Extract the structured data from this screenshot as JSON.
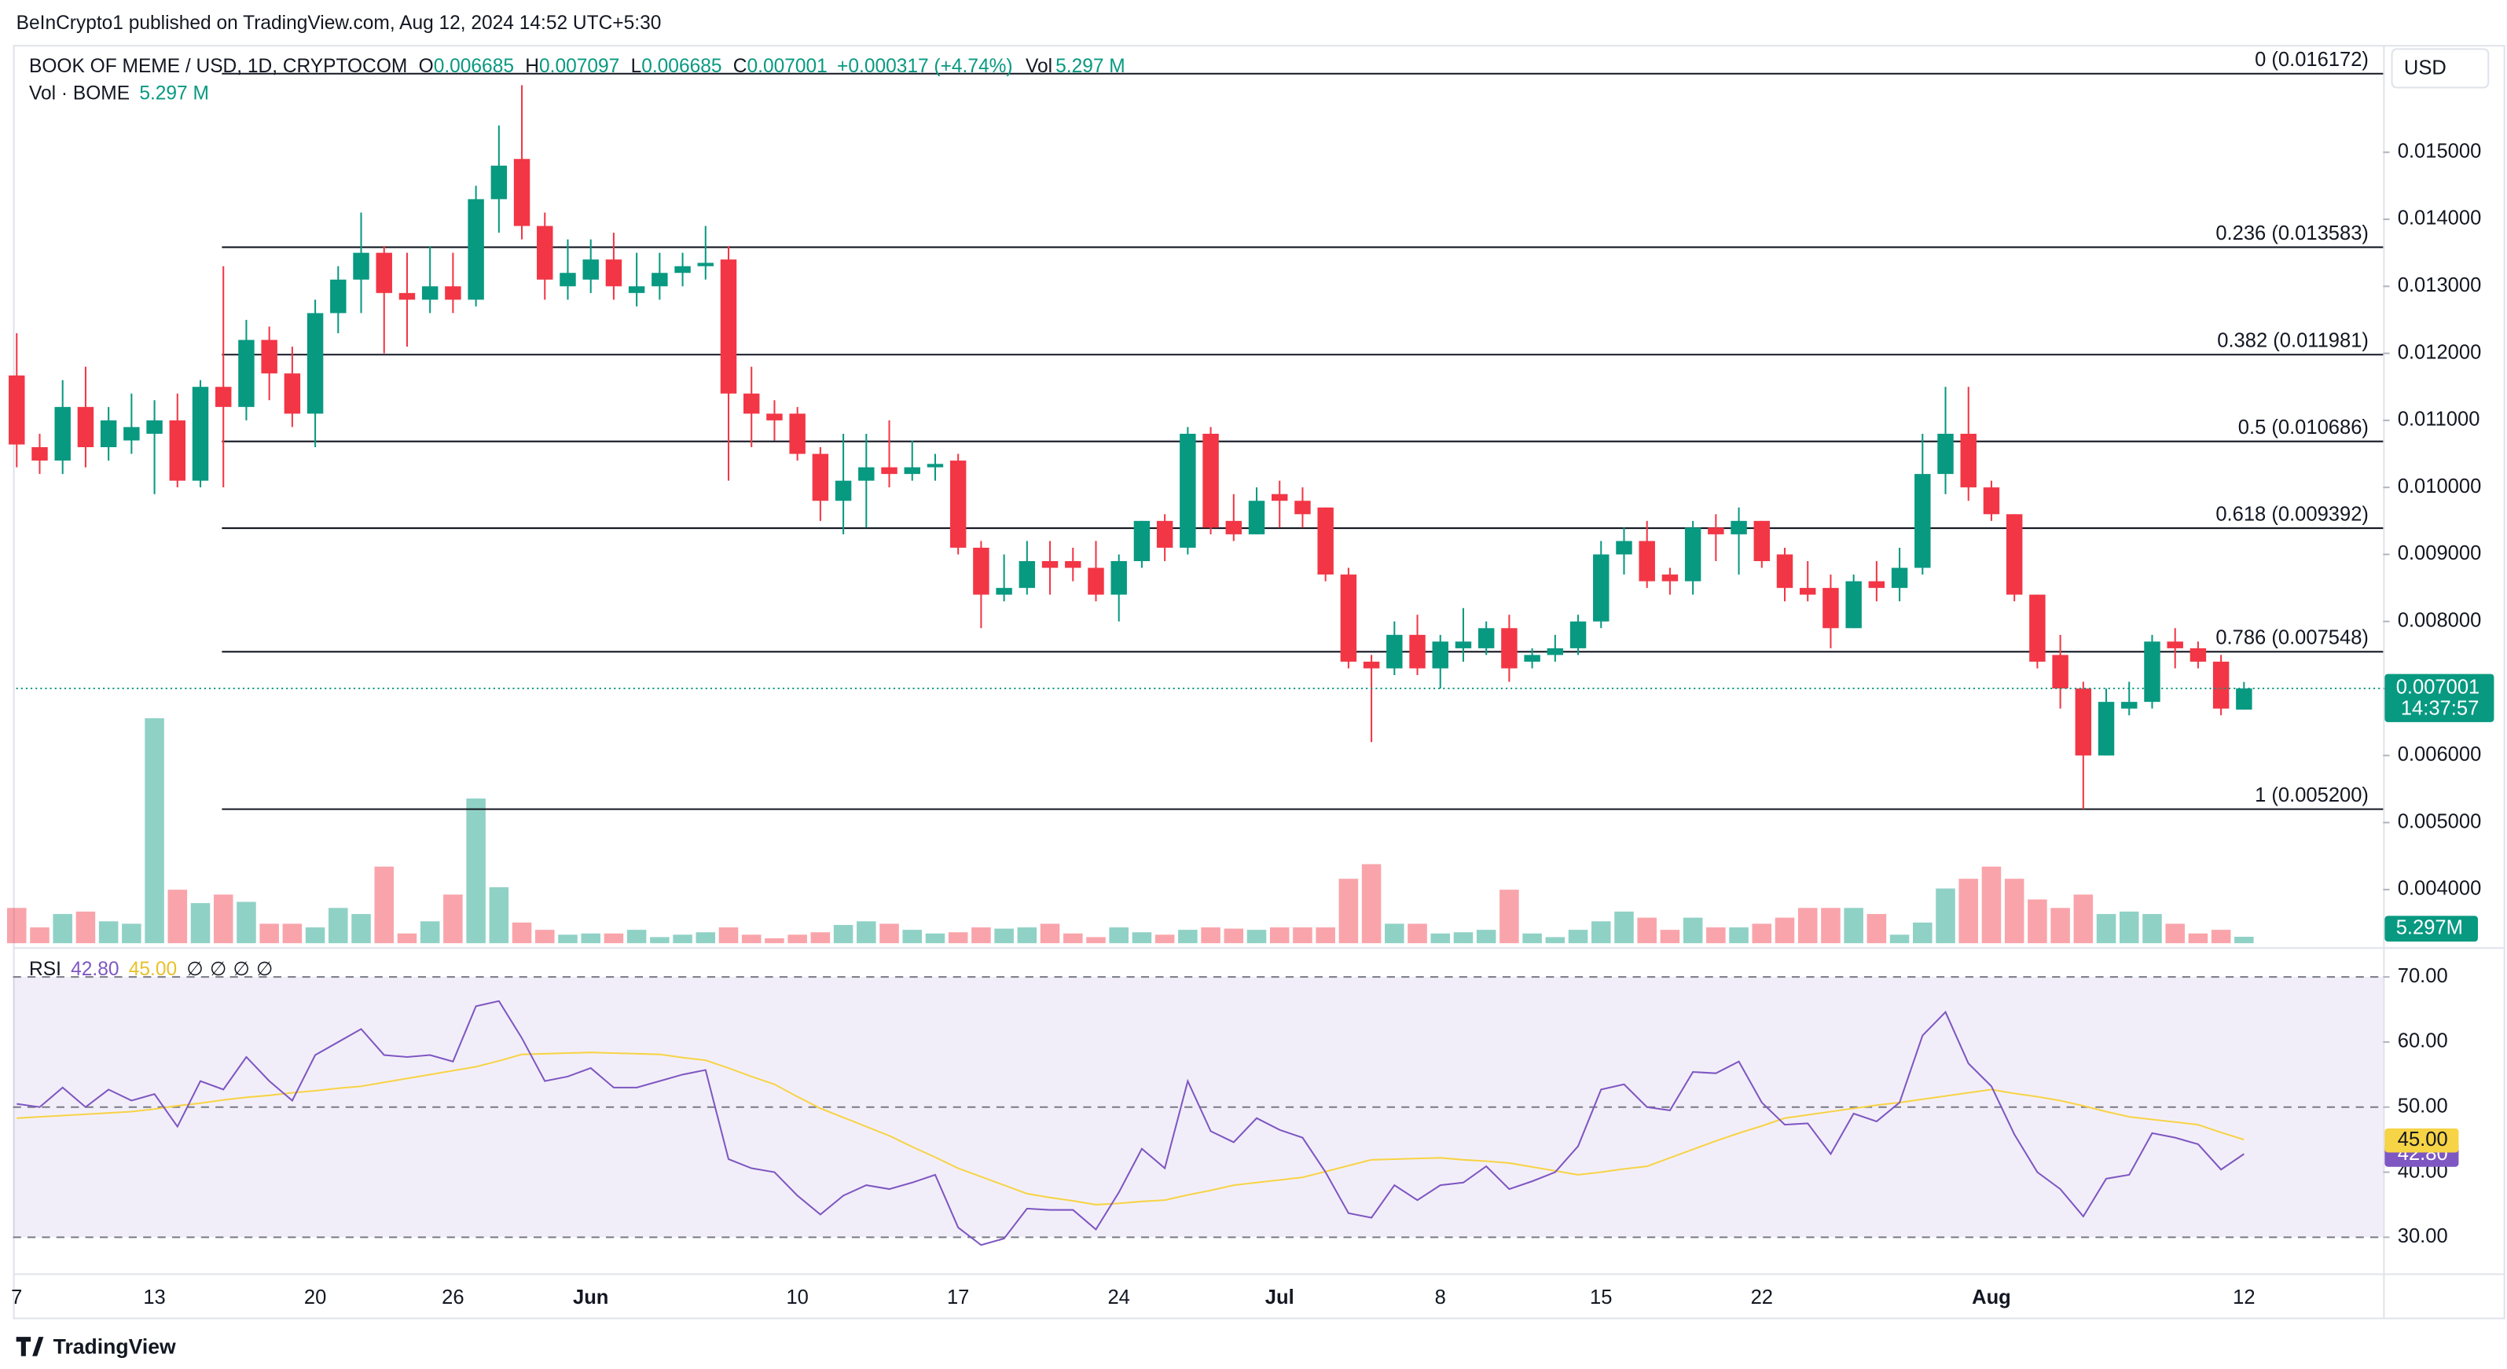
{
  "header": {
    "published": "BeInCrypto1 published on TradingView.com, Aug 12, 2024 14:52 UTC+5:30",
    "brand": "TradingView"
  },
  "chart_data": [
    {
      "type": "candlestick",
      "title": "BOOK OF MEME / USD, 1D, CRYPTOCOM",
      "currency": "USD",
      "ohlc_labels": [
        "O",
        "H",
        "L",
        "C"
      ],
      "change_label": "+0.000317 (+4.74%)",
      "last_price_time": "14:37:57",
      "up_color": "#089981",
      "down_color": "#f23645",
      "categories": [
        "7",
        null,
        null,
        null,
        null,
        null,
        "13",
        null,
        null,
        null,
        null,
        null,
        null,
        "20",
        null,
        null,
        null,
        null,
        null,
        "26",
        null,
        null,
        null,
        null,
        null,
        "Jun",
        null,
        null,
        null,
        null,
        null,
        null,
        null,
        null,
        "10",
        null,
        null,
        null,
        null,
        null,
        null,
        "17",
        null,
        null,
        null,
        null,
        null,
        null,
        "24",
        null,
        null,
        null,
        null,
        null,
        null,
        "Jul",
        null,
        null,
        null,
        null,
        null,
        null,
        "8",
        null,
        null,
        null,
        null,
        null,
        null,
        "15",
        null,
        null,
        null,
        null,
        null,
        null,
        "22",
        null,
        null,
        null,
        null,
        null,
        null,
        null,
        null,
        null,
        "Aug",
        null,
        null,
        null,
        null,
        null,
        null,
        null,
        null,
        null,
        null,
        "12"
      ],
      "open": [
        0.01167,
        0.0106,
        0.0104,
        0.0112,
        0.0106,
        0.0107,
        0.0108,
        0.011,
        0.0101,
        0.0115,
        0.0112,
        0.0122,
        0.0117,
        0.0111,
        0.0126,
        0.0131,
        0.0135,
        0.0129,
        0.0128,
        0.013,
        0.0128,
        0.0143,
        0.0149,
        0.0139,
        0.013,
        0.0131,
        0.0134,
        0.0129,
        0.013,
        0.0132,
        0.0133,
        0.0134,
        0.0114,
        0.0111,
        0.0111,
        0.0105,
        0.0098,
        0.0101,
        0.0103,
        0.0102,
        0.0103,
        0.0104,
        0.0091,
        0.0084,
        0.0085,
        0.0089,
        0.0089,
        0.0088,
        0.0084,
        0.0089,
        0.0095,
        0.0091,
        0.0108,
        0.0095,
        0.0093,
        0.0099,
        0.0098,
        0.0097,
        0.0087,
        0.0074,
        0.0073,
        0.0078,
        0.0073,
        0.0076,
        0.0076,
        0.0079,
        0.0074,
        0.0075,
        0.0076,
        0.008,
        0.009,
        0.0092,
        0.0087,
        0.0086,
        0.0094,
        0.0093,
        0.0095,
        0.009,
        0.0085,
        0.0085,
        0.0079,
        0.0086,
        0.0085,
        0.0088,
        0.0102,
        0.0108,
        0.01,
        0.0096,
        0.0084,
        0.0075,
        0.007,
        0.006,
        0.0067,
        0.0068,
        0.0077,
        0.0076,
        0.0074,
        0.006685
      ],
      "high": [
        0.0123,
        0.0108,
        0.0116,
        0.0118,
        0.0112,
        0.0114,
        0.0113,
        0.0114,
        0.0116,
        0.0133,
        0.0125,
        0.0124,
        0.0121,
        0.0128,
        0.0133,
        0.0141,
        0.0136,
        0.0135,
        0.0136,
        0.0135,
        0.0145,
        0.0154,
        0.016,
        0.0141,
        0.0137,
        0.0137,
        0.0138,
        0.0135,
        0.0135,
        0.0135,
        0.0139,
        0.0136,
        0.0118,
        0.0113,
        0.0112,
        0.0106,
        0.0108,
        0.0108,
        0.011,
        0.0107,
        0.0105,
        0.0105,
        0.0092,
        0.009,
        0.0092,
        0.0092,
        0.0091,
        0.0092,
        0.009,
        0.0095,
        0.0096,
        0.0109,
        0.0109,
        0.0099,
        0.01,
        0.0101,
        0.01,
        0.0097,
        0.0088,
        0.0075,
        0.008,
        0.0081,
        0.0078,
        0.0082,
        0.008,
        0.0081,
        0.0076,
        0.0078,
        0.0081,
        0.0092,
        0.0094,
        0.0095,
        0.0088,
        0.0095,
        0.0096,
        0.0097,
        0.0095,
        0.0091,
        0.0089,
        0.0087,
        0.0087,
        0.0089,
        0.0091,
        0.0108,
        0.0115,
        0.0115,
        0.0101,
        0.0096,
        0.0084,
        0.0078,
        0.0071,
        0.007,
        0.0071,
        0.0078,
        0.0079,
        0.0077,
        0.0075,
        0.007097
      ],
      "low": [
        0.0103,
        0.0102,
        0.0102,
        0.0103,
        0.0104,
        0.0105,
        0.0099,
        0.01,
        0.01,
        0.01,
        0.011,
        0.0113,
        0.0109,
        0.0106,
        0.0123,
        0.0126,
        0.012,
        0.0121,
        0.0126,
        0.0126,
        0.0127,
        0.0138,
        0.0137,
        0.0128,
        0.0128,
        0.0129,
        0.0128,
        0.0127,
        0.0128,
        0.013,
        0.0131,
        0.0101,
        0.0106,
        0.0107,
        0.0104,
        0.0095,
        0.0093,
        0.0094,
        0.01,
        0.0101,
        0.0101,
        0.009,
        0.0079,
        0.0083,
        0.0084,
        0.0084,
        0.0086,
        0.0083,
        0.008,
        0.0088,
        0.0089,
        0.009,
        0.0093,
        0.0092,
        0.0093,
        0.0094,
        0.0094,
        0.0086,
        0.0073,
        0.0062,
        0.0072,
        0.0072,
        0.007,
        0.0074,
        0.0075,
        0.0071,
        0.0073,
        0.0074,
        0.0075,
        0.0079,
        0.0087,
        0.0085,
        0.0084,
        0.0084,
        0.0089,
        0.0087,
        0.0088,
        0.0083,
        0.0083,
        0.0076,
        0.0079,
        0.0083,
        0.0083,
        0.0087,
        0.0099,
        0.0098,
        0.0095,
        0.0083,
        0.0073,
        0.0067,
        0.0052,
        0.006,
        0.0066,
        0.0067,
        0.0073,
        0.0073,
        0.0066,
        0.006685
      ],
      "close": [
        0.01064,
        0.0104,
        0.0112,
        0.0106,
        0.011,
        0.0109,
        0.011,
        0.0101,
        0.0115,
        0.0112,
        0.0122,
        0.0117,
        0.0111,
        0.0126,
        0.0131,
        0.0135,
        0.0129,
        0.0128,
        0.013,
        0.0128,
        0.0143,
        0.0148,
        0.0139,
        0.0131,
        0.0132,
        0.0134,
        0.013,
        0.013,
        0.0132,
        0.0133,
        0.01335,
        0.0114,
        0.0111,
        0.011,
        0.0105,
        0.0098,
        0.0101,
        0.0103,
        0.0102,
        0.0103,
        0.01035,
        0.0091,
        0.0084,
        0.0085,
        0.0089,
        0.0088,
        0.0088,
        0.0084,
        0.0089,
        0.0095,
        0.0091,
        0.0108,
        0.0094,
        0.0093,
        0.0098,
        0.0098,
        0.0096,
        0.0087,
        0.0074,
        0.0073,
        0.0078,
        0.0073,
        0.0077,
        0.0077,
        0.0079,
        0.0073,
        0.0075,
        0.0076,
        0.008,
        0.009,
        0.0092,
        0.0086,
        0.0086,
        0.0094,
        0.0093,
        0.0095,
        0.0089,
        0.0085,
        0.0084,
        0.0079,
        0.0086,
        0.0085,
        0.0088,
        0.0102,
        0.0108,
        0.01,
        0.0096,
        0.0084,
        0.0074,
        0.007,
        0.006,
        0.0068,
        0.0068,
        0.0077,
        0.0076,
        0.0074,
        0.0067,
        0.007001
      ],
      "volume": {
        "name": "Vol · BOME",
        "label": "Vol",
        "value_label": "5.297 M",
        "axis_label": "5.297M",
        "values": [
          29,
          13,
          24,
          26,
          18,
          16,
          185,
          44,
          33,
          40,
          34,
          16,
          16,
          13,
          29,
          24,
          63,
          8,
          18,
          40,
          119,
          46,
          17,
          11,
          7,
          8,
          8,
          11,
          5,
          7,
          9,
          13,
          7,
          4,
          7,
          9,
          15,
          18,
          16,
          11,
          8,
          9,
          13,
          12,
          13,
          16,
          8,
          5,
          13,
          9,
          7,
          11,
          13,
          12,
          11,
          13,
          13,
          13,
          53,
          65,
          16,
          16,
          8,
          9,
          11,
          44,
          8,
          5,
          11,
          18,
          26,
          21,
          11,
          21,
          13,
          13,
          16,
          21,
          29,
          29,
          29,
          24,
          7,
          17,
          45,
          53,
          63,
          53,
          36,
          29,
          40,
          24,
          26,
          24,
          16,
          8,
          11,
          5.297
        ]
      },
      "ylim": [
        0.0032,
        0.0166
      ],
      "yticks": [
        {
          "value": 0.004,
          "label": "0.004000"
        },
        {
          "value": 0.005,
          "label": "0.005000"
        },
        {
          "value": 0.006,
          "label": "0.006000"
        },
        {
          "value": 0.007,
          "label": "0.007000"
        },
        {
          "value": 0.008,
          "label": "0.008000"
        },
        {
          "value": 0.009,
          "label": "0.009000"
        },
        {
          "value": 0.01,
          "label": "0.010000"
        },
        {
          "value": 0.011,
          "label": "0.011000"
        },
        {
          "value": 0.012,
          "label": "0.012000"
        },
        {
          "value": 0.013,
          "label": "0.013000"
        },
        {
          "value": 0.014,
          "label": "0.014000"
        },
        {
          "value": 0.015,
          "label": "0.015000"
        }
      ],
      "fib_levels": [
        {
          "value": 0.016172,
          "label": "0 (0.016172)"
        },
        {
          "value": 0.013583,
          "label": "0.236 (0.013583)"
        },
        {
          "value": 0.011981,
          "label": "0.382 (0.011981)"
        },
        {
          "value": 0.010686,
          "label": "0.5 (0.010686)"
        },
        {
          "value": 0.009392,
          "label": "0.618 (0.009392)"
        },
        {
          "value": 0.007548,
          "label": "0.786 (0.007548)"
        },
        {
          "value": 0.0052,
          "label": "1 (0.005200)"
        }
      ]
    },
    {
      "type": "line",
      "title": "RSI",
      "legend_icons": [
        "∅",
        "∅",
        "∅",
        "∅"
      ],
      "series": [
        {
          "color": "#7e57c2",
          "value_label": "42.80",
          "values": [
            50.5,
            50,
            53,
            50,
            52.7,
            51,
            52,
            47,
            54,
            52.7,
            57.7,
            54,
            51,
            58,
            60,
            62,
            58,
            57.7,
            58,
            57,
            65.5,
            66.3,
            60.6,
            54,
            54.7,
            56,
            53,
            53,
            54,
            55,
            55.7,
            42,
            40.6,
            40,
            36.4,
            33.5,
            36.4,
            38,
            37.4,
            38.4,
            39.6,
            31.5,
            28.8,
            29.8,
            34.4,
            34.2,
            34.2,
            31.2,
            36.9,
            43.6,
            40.6,
            54,
            46.3,
            44.6,
            48.3,
            46.5,
            45.3,
            40,
            33.7,
            33,
            38,
            35.7,
            38,
            38.4,
            40.9,
            37.4,
            38.6,
            40,
            44,
            52.7,
            53.5,
            50,
            49.5,
            55.4,
            55.2,
            57,
            50.7,
            47.3,
            47.5,
            42.8,
            49,
            47.8,
            50.7,
            61,
            64.6,
            56.7,
            53.2,
            45.8,
            40,
            37.4,
            33.2,
            39,
            39.6,
            46,
            45.3,
            44.3,
            40.4,
            42.8
          ]
        },
        {
          "color": "#f7d346",
          "value_label": "45.00",
          "values": [
            48.3,
            48.5,
            48.7,
            48.9,
            49.1,
            49.3,
            49.7,
            50.2,
            50.6,
            51.1,
            51.5,
            51.8,
            52.2,
            52.5,
            52.9,
            53.2,
            53.8,
            54.4,
            55.0,
            55.6,
            56.2,
            57.1,
            58.1,
            58.2,
            58.3,
            58.4,
            58.3,
            58.2,
            58.1,
            57.6,
            57.2,
            56.0,
            54.7,
            53.5,
            51.6,
            49.8,
            48.4,
            47.0,
            45.6,
            43.9,
            42.3,
            40.6,
            39.3,
            38.0,
            36.7,
            36.1,
            35.6,
            35.0,
            35.2,
            35.5,
            35.7,
            36.5,
            37.2,
            38.0,
            38.4,
            38.8,
            39.2,
            40.1,
            41.0,
            41.9,
            42.0,
            42.1,
            42.2,
            41.9,
            41.7,
            41.4,
            40.8,
            40.2,
            39.6,
            40.0,
            40.5,
            40.9,
            42.2,
            43.5,
            44.8,
            46.0,
            47.1,
            48.3,
            48.8,
            49.3,
            49.8,
            50.3,
            50.7,
            51.2,
            51.7,
            52.2,
            52.7,
            52.1,
            51.6,
            51.0,
            50.2,
            49.3,
            48.5,
            48.1,
            47.7,
            47.3,
            46.1,
            45.0
          ]
        }
      ],
      "ylim": [
        25,
        73
      ],
      "yticks": [
        {
          "value": 30,
          "label": "30.00"
        },
        {
          "value": 40,
          "label": "40.00"
        },
        {
          "value": 50,
          "label": "50.00"
        },
        {
          "value": 60,
          "label": "60.00"
        },
        {
          "value": 70,
          "label": "70.00"
        }
      ]
    }
  ]
}
